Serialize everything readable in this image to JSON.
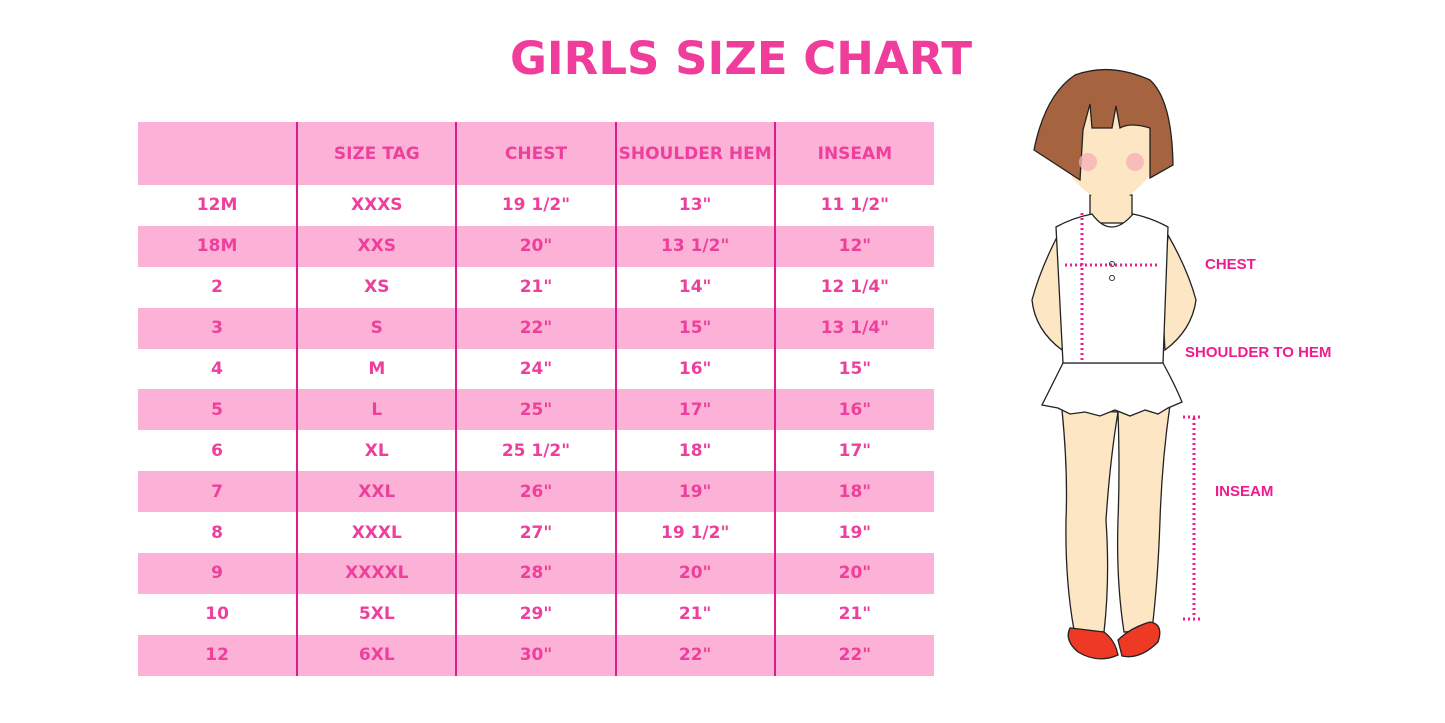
{
  "title": "GIRLS SIZE CHART",
  "table": {
    "headers": [
      "",
      "SIZE TAG",
      "CHEST",
      "SHOULDER HEM",
      "INSEAM"
    ],
    "rows": [
      [
        "12M",
        "XXXS",
        "19 1/2\"",
        "13\"",
        "11 1/2\""
      ],
      [
        "18M",
        "XXS",
        "20\"",
        "13 1/2\"",
        "12\""
      ],
      [
        "2",
        "XS",
        "21\"",
        "14\"",
        "12 1/4\""
      ],
      [
        "3",
        "S",
        "22\"",
        "15\"",
        "13 1/4\""
      ],
      [
        "4",
        "M",
        "24\"",
        "16\"",
        "15\""
      ],
      [
        "5",
        "L",
        "25\"",
        "17\"",
        "16\""
      ],
      [
        "6",
        "XL",
        "25 1/2\"",
        "18\"",
        "17\""
      ],
      [
        "7",
        "XXL",
        "26\"",
        "19\"",
        "18\""
      ],
      [
        "8",
        "XXXL",
        "27\"",
        "19 1/2\"",
        "19\""
      ],
      [
        "9",
        "XXXXL",
        "28\"",
        "20\"",
        "20\""
      ],
      [
        "10",
        "5XL",
        "29\"",
        "21\"",
        "21\""
      ],
      [
        "12",
        "6XL",
        "30\"",
        "22\"",
        "22\""
      ]
    ]
  },
  "diagram_labels": {
    "chest": "CHEST",
    "shoulder_to_hem": "SHOULDER TO HEM",
    "inseam": "INSEAM"
  },
  "colors": {
    "accent": "#ee3f9c",
    "row_pink": "#fcb2d6",
    "divider": "#e0198f",
    "hair": "#a5633f",
    "skin": "#fde6c4",
    "shoes": "#ee3a25"
  }
}
